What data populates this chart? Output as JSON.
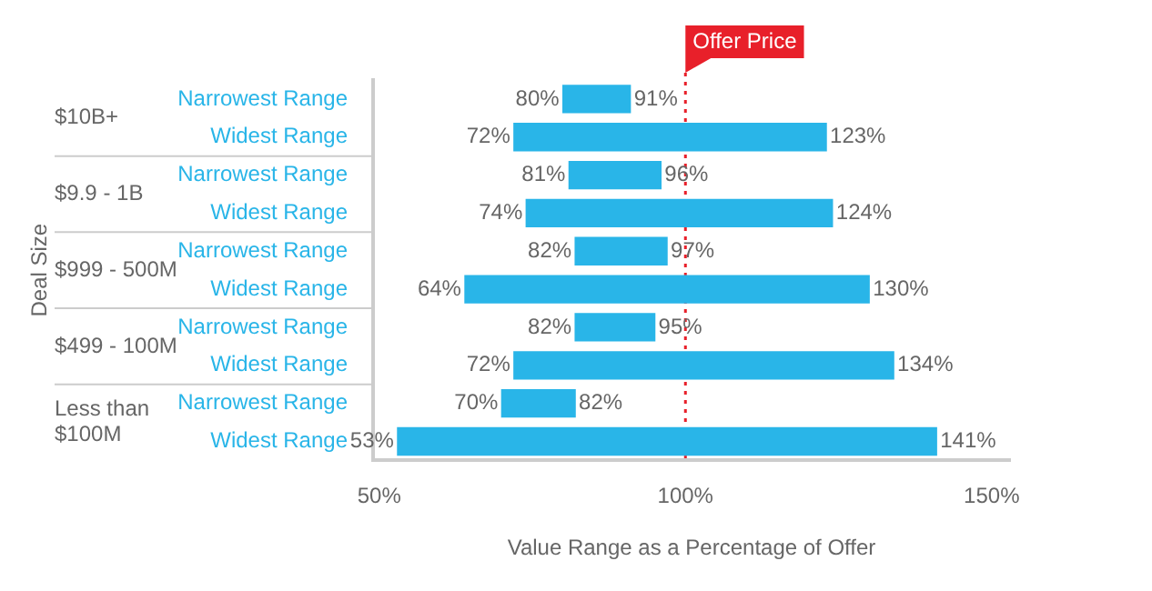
{
  "chart_data": {
    "type": "bar",
    "orientation": "horizontal",
    "xlabel": "Value Range as a Percentage of Offer",
    "categories": [
      "Narrowest Range",
      "Widest Range",
      "Narrowest Range",
      "Widest Range",
      "Narrowest Range",
      "Widest Range",
      "Narrowest Range",
      "Widest Range",
      "Narrowest Range",
      "Widest Range"
    ],
    "base": [
      80,
      72,
      81,
      74,
      82,
      64,
      82,
      72,
      70,
      53
    ],
    "values": [
      11,
      51,
      15,
      50,
      15,
      66,
      13,
      62,
      12,
      88
    ],
    "color": "#29b5e8",
    "xlim": [
      49,
      153
    ],
    "xticks": [
      {
        "value": 50,
        "label": "50%"
      },
      {
        "value": 100,
        "label": "100%"
      },
      {
        "value": 150,
        "label": "150%"
      }
    ],
    "grid": false,
    "legend": false,
    "ref_lines": [
      {
        "axis": "x",
        "value": 100,
        "label": "Offer Price",
        "color": "#e8202a",
        "line_style": "dotted"
      }
    ],
    "annotations": [
      "Deal Size",
      "$10B+",
      "$9.9 - 1B",
      "$999 - 500M",
      "$499 - 100M",
      "Less than $100M",
      "80%",
      "91%",
      "72%",
      "123%",
      "81%",
      "96%",
      "74%",
      "124%",
      "82%",
      "97%",
      "64%",
      "130%",
      "82%",
      "95%",
      "72%",
      "134%",
      "70%",
      "82%",
      "53%",
      "141%"
    ]
  }
}
